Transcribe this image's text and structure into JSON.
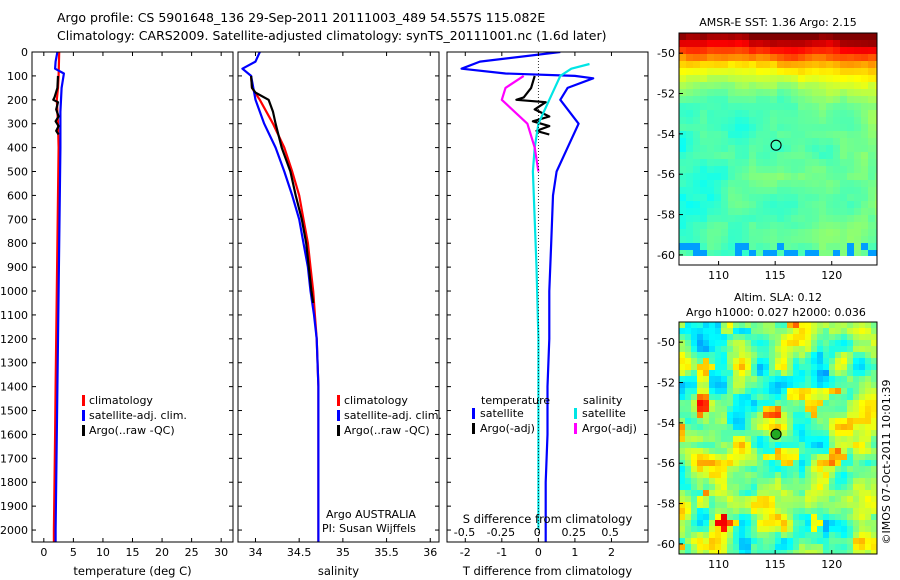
{
  "header": {
    "line1": "Argo profile: CS 5901648_136 29-Sep-2011 20111003_489 54.557S 115.082E",
    "line2": "Climatology: CARS2009. Satellite-adjusted climatology: synTS_20111001.nc (1.6d later)"
  },
  "credit": "©IMOS 07-Oct-2011 10:01:39",
  "colors": {
    "climatology": "#ff0000",
    "satellite_adj": "#0000ff",
    "argo": "#000000",
    "satellite_sal": "#00e5e5",
    "argo_adj_sal": "#ff00ff"
  },
  "chart_data": [
    {
      "type": "line",
      "id": "temperature",
      "xlabel": "temperature (deg C)",
      "xlim": [
        -2,
        32
      ],
      "xticks": [
        0,
        5,
        10,
        15,
        20,
        25,
        30
      ],
      "ylim": [
        2050,
        0
      ],
      "yticks": [
        0,
        100,
        200,
        300,
        400,
        500,
        600,
        700,
        800,
        900,
        1000,
        1100,
        1200,
        1300,
        1400,
        1500,
        1600,
        1700,
        1800,
        1900,
        2000
      ],
      "legend": [
        "climatology",
        "satellite-adj. clim.",
        "Argo(..raw -QC)"
      ],
      "series": [
        {
          "name": "climatology",
          "color": "#ff0000",
          "points": [
            [
              2.6,
              0
            ],
            [
              2.5,
              100
            ],
            [
              2.4,
              150
            ],
            [
              2.2,
              200
            ],
            [
              2.4,
              300
            ],
            [
              2.5,
              400
            ],
            [
              2.4,
              600
            ],
            [
              2.3,
              800
            ],
            [
              2.2,
              1000
            ],
            [
              2.1,
              1200
            ],
            [
              2.0,
              1400
            ],
            [
              1.9,
              1600
            ],
            [
              1.8,
              1800
            ],
            [
              1.7,
              2000
            ],
            [
              1.7,
              2050
            ]
          ]
        },
        {
          "name": "satellite-adj. clim.",
          "color": "#0000ff",
          "points": [
            [
              2.3,
              0
            ],
            [
              2.0,
              40
            ],
            [
              1.9,
              70
            ],
            [
              3.4,
              90
            ],
            [
              3.0,
              150
            ],
            [
              2.8,
              250
            ],
            [
              2.8,
              400
            ],
            [
              2.7,
              600
            ],
            [
              2.6,
              800
            ],
            [
              2.5,
              1000
            ],
            [
              2.4,
              1200
            ],
            [
              2.3,
              1400
            ],
            [
              2.2,
              1600
            ],
            [
              2.1,
              1800
            ],
            [
              2.0,
              2000
            ],
            [
              2.0,
              2050
            ]
          ]
        },
        {
          "name": "Argo(..raw -QC)",
          "color": "#000000",
          "points": [
            [
              2.4,
              100
            ],
            [
              2.3,
              150
            ],
            [
              1.8,
              190
            ],
            [
              1.6,
              200
            ],
            [
              2.4,
              210
            ],
            [
              2.1,
              240
            ],
            [
              2.5,
              270
            ],
            [
              2.0,
              290
            ],
            [
              2.5,
              310
            ],
            [
              2.1,
              330
            ],
            [
              2.5,
              345
            ]
          ]
        }
      ]
    },
    {
      "type": "line",
      "id": "salinity",
      "xlabel": "salinity",
      "xlim": [
        33.8,
        36.1
      ],
      "xticks": [
        34,
        34.5,
        35,
        35.5,
        36
      ],
      "xticklabels": [
        "34",
        "34.5",
        "35",
        "35.5",
        "36"
      ],
      "ylim": [
        2050,
        0
      ],
      "legend": [
        "climatology",
        "satellite-adj. clim.",
        "Argo(..raw -QC)"
      ],
      "series": [
        {
          "name": "climatology",
          "color": "#ff0000",
          "points": [
            [
              33.95,
              100
            ],
            [
              33.96,
              150
            ],
            [
              34.05,
              200
            ],
            [
              34.2,
              300
            ],
            [
              34.33,
              400
            ],
            [
              34.42,
              500
            ],
            [
              34.5,
              600
            ],
            [
              34.55,
              700
            ],
            [
              34.6,
              800
            ],
            [
              34.63,
              900
            ],
            [
              34.66,
              1000
            ],
            [
              34.68,
              1100
            ],
            [
              34.7,
              1200
            ],
            [
              34.72,
              1400
            ],
            [
              34.72,
              1600
            ],
            [
              34.72,
              1800
            ],
            [
              34.72,
              2000
            ],
            [
              34.72,
              2050
            ]
          ]
        },
        {
          "name": "satellite-adj. clim.",
          "color": "#0000ff",
          "points": [
            [
              34.05,
              0
            ],
            [
              34.0,
              40
            ],
            [
              33.85,
              70
            ],
            [
              33.95,
              100
            ],
            [
              34.0,
              200
            ],
            [
              34.1,
              300
            ],
            [
              34.23,
              400
            ],
            [
              34.33,
              500
            ],
            [
              34.42,
              600
            ],
            [
              34.5,
              700
            ],
            [
              34.55,
              800
            ],
            [
              34.6,
              900
            ],
            [
              34.63,
              1000
            ],
            [
              34.67,
              1100
            ],
            [
              34.7,
              1200
            ],
            [
              34.72,
              1400
            ],
            [
              34.72,
              1600
            ],
            [
              34.72,
              1800
            ],
            [
              34.72,
              2000
            ],
            [
              34.72,
              2050
            ]
          ]
        },
        {
          "name": "Argo(..raw -QC)",
          "color": "#000000",
          "points": [
            [
              33.95,
              100
            ],
            [
              33.96,
              150
            ],
            [
              34.0,
              170
            ],
            [
              34.15,
              200
            ],
            [
              34.2,
              250
            ],
            [
              34.23,
              300
            ],
            [
              34.3,
              400
            ],
            [
              34.4,
              500
            ],
            [
              34.46,
              600
            ],
            [
              34.53,
              700
            ],
            [
              34.58,
              800
            ],
            [
              34.61,
              900
            ],
            [
              34.64,
              1000
            ],
            [
              34.66,
              1050
            ]
          ]
        }
      ],
      "annotation": [
        "Argo AUSTRALIA",
        "PI: Susan Wijffels"
      ]
    },
    {
      "type": "line",
      "id": "difference",
      "xlabel": "T difference from climatology",
      "xlabel_top": "S difference from climatology",
      "xlim": [
        -2.5,
        3
      ],
      "xticks": [
        -2,
        -1,
        0,
        1,
        2
      ],
      "top_xticks": [
        -0.5,
        -0.25,
        0,
        0.25,
        0.5
      ],
      "top_xticklabels": [
        "-0.5",
        "-0.25",
        "0",
        "0.25",
        "0.5"
      ],
      "ylim": [
        2050,
        0
      ],
      "legend_left_title": "temperature",
      "legend_right_title": "salinity",
      "legend": [
        "satellite",
        "Argo(-adj)",
        "satellite",
        "Argo(-adj)"
      ],
      "series": [
        {
          "name": "satellite",
          "group": "temperature",
          "color": "#0000ff",
          "points": [
            [
              0.6,
              0
            ],
            [
              -1.6,
              40
            ],
            [
              -2.1,
              70
            ],
            [
              -0.9,
              90
            ],
            [
              1.0,
              100
            ],
            [
              1.5,
              110
            ],
            [
              0.8,
              150
            ],
            [
              0.6,
              200
            ],
            [
              1.1,
              300
            ],
            [
              0.8,
              400
            ],
            [
              0.5,
              500
            ],
            [
              0.4,
              600
            ],
            [
              0.35,
              800
            ],
            [
              0.3,
              1000
            ],
            [
              0.3,
              1200
            ],
            [
              0.25,
              1400
            ],
            [
              0.25,
              1600
            ],
            [
              0.2,
              1800
            ],
            [
              0.2,
              2000
            ],
            [
              0.2,
              2050
            ]
          ]
        },
        {
          "name": "Argo(-adj)",
          "group": "temperature",
          "color": "#000000",
          "points": [
            [
              -0.1,
              100
            ],
            [
              -0.2,
              150
            ],
            [
              -0.4,
              190
            ],
            [
              -0.6,
              200
            ],
            [
              0.2,
              210
            ],
            [
              -0.1,
              240
            ],
            [
              0.3,
              270
            ],
            [
              -0.15,
              290
            ],
            [
              0.3,
              310
            ],
            [
              -0.05,
              330
            ],
            [
              0.3,
              345
            ]
          ]
        },
        {
          "name": "satellite",
          "group": "salinity",
          "color": "#00e5e5",
          "points": [
            [
              1.4,
              50
            ],
            [
              0.9,
              70
            ],
            [
              0.6,
              100
            ],
            [
              0.3,
              200
            ],
            [
              0.0,
              300
            ],
            [
              -0.1,
              400
            ],
            [
              -0.15,
              500
            ],
            [
              -0.1,
              700
            ],
            [
              -0.05,
              900
            ],
            [
              0.0,
              1200
            ],
            [
              0.0,
              1500
            ],
            [
              0.0,
              1800
            ],
            [
              0.0,
              2000
            ]
          ]
        },
        {
          "name": "Argo(-adj)",
          "group": "salinity",
          "color": "#ff00ff",
          "points": [
            [
              -0.4,
              100
            ],
            [
              -0.9,
              150
            ],
            [
              -1.0,
              200
            ],
            [
              -0.3,
              300
            ],
            [
              -0.1,
              400
            ],
            [
              0.0,
              500
            ]
          ]
        }
      ]
    },
    {
      "type": "heatmap",
      "id": "sst",
      "title": "AMSR-E SST: 1.36 Argo: 2.15",
      "xlim": [
        106.5,
        124
      ],
      "xticks": [
        110,
        115,
        120
      ],
      "ylim": [
        -60.5,
        -49
      ],
      "yticks": [
        -60,
        -58,
        -56,
        -54,
        -52,
        -50
      ],
      "marker": [
        115.08,
        -54.56
      ]
    },
    {
      "type": "heatmap",
      "id": "sla",
      "title_line1": "Altim. SLA: 0.12",
      "title_line2": "Argo h1000: 0.027 h2000: 0.036",
      "xlim": [
        106.5,
        124
      ],
      "xticks": [
        110,
        115,
        120
      ],
      "ylim": [
        -60.5,
        -49
      ],
      "yticks": [
        -60,
        -58,
        -56,
        -54,
        -52,
        -50
      ],
      "marker": [
        115.08,
        -54.56
      ]
    }
  ]
}
